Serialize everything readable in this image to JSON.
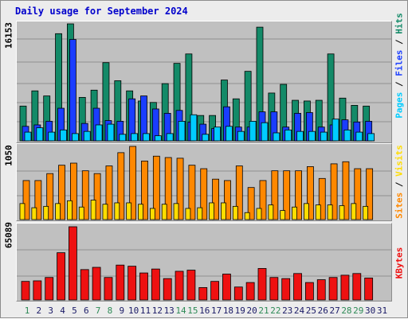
{
  "title": "Daily usage for September 2024",
  "colors": {
    "pages": "#00ccff",
    "files": "#1a3dff",
    "hits": "#138a68",
    "visits": "#ffdd00",
    "sites": "#ff8800",
    "kbytes": "#ee1111",
    "weekend_label": "#2e8b57",
    "weekday_label": "#1a1a66"
  },
  "right_labels": {
    "top": {
      "pages": "Pages",
      "sep1": " / ",
      "files": "Files",
      "sep2": " / ",
      "hits": "Hits"
    },
    "mid": {
      "sites": "Sites",
      "sep": " / ",
      "visits": "Visits"
    },
    "bot": {
      "kbytes": "KBytes"
    }
  },
  "chart_data": [
    {
      "type": "bar",
      "panel": "top",
      "y_max_label": "16153",
      "ylim": [
        0,
        16153
      ],
      "grid": true,
      "categories": [
        "1",
        "2",
        "3",
        "4",
        "5",
        "6",
        "7",
        "8",
        "9",
        "10",
        "11",
        "12",
        "13",
        "14",
        "15",
        "16",
        "17",
        "18",
        "19",
        "20",
        "21",
        "22",
        "23",
        "24",
        "25",
        "26",
        "27",
        "28",
        "29",
        "30"
      ],
      "series": [
        {
          "name": "Hits",
          "values": [
            4800,
            6900,
            6200,
            14800,
            16153,
            6000,
            7000,
            10800,
            8300,
            6900,
            5500,
            5300,
            7900,
            10700,
            12000,
            3500,
            3500,
            8400,
            5800,
            9600,
            15700,
            6600,
            7800,
            5600,
            5500,
            5600,
            12000,
            5900,
            4900,
            4800
          ]
        },
        {
          "name": "Files",
          "values": [
            2000,
            2200,
            2700,
            4500,
            14000,
            2400,
            4500,
            2800,
            2700,
            5800,
            6200,
            4400,
            3800,
            4200,
            2600,
            2300,
            1700,
            4700,
            1900,
            1900,
            4000,
            4000,
            1900,
            3800,
            3900,
            1900,
            2200,
            2900,
            2600,
            2700
          ]
        },
        {
          "name": "Pages",
          "values": [
            1200,
            1800,
            1200,
            1500,
            1000,
            1300,
            2200,
            2300,
            900,
            1000,
            1000,
            700,
            1000,
            2700,
            3600,
            900,
            1900,
            2000,
            1300,
            2700,
            2500,
            1100,
            1500,
            1300,
            1300,
            1200,
            3000,
            1500,
            1200,
            1000
          ]
        }
      ]
    },
    {
      "type": "bar",
      "panel": "mid",
      "y_max_label": "1050",
      "ylim": [
        0,
        1050
      ],
      "grid": true,
      "categories": [
        "1",
        "2",
        "3",
        "4",
        "5",
        "6",
        "7",
        "8",
        "9",
        "10",
        "11",
        "12",
        "13",
        "14",
        "15",
        "16",
        "17",
        "18",
        "19",
        "20",
        "21",
        "22",
        "23",
        "24",
        "25",
        "26",
        "27",
        "28",
        "29",
        "30"
      ],
      "series": [
        {
          "name": "Sites",
          "values": [
            560,
            560,
            660,
            780,
            810,
            700,
            660,
            770,
            960,
            1050,
            840,
            910,
            890,
            880,
            780,
            730,
            580,
            560,
            770,
            460,
            560,
            700,
            700,
            700,
            760,
            590,
            800,
            830,
            730,
            730
          ]
        },
        {
          "name": "Visits",
          "values": [
            230,
            170,
            190,
            230,
            270,
            180,
            280,
            220,
            240,
            240,
            220,
            160,
            220,
            230,
            160,
            170,
            240,
            240,
            190,
            100,
            160,
            210,
            130,
            180,
            230,
            210,
            210,
            200,
            230,
            190
          ]
        }
      ]
    },
    {
      "type": "bar",
      "panel": "bot",
      "y_max_label": "65089",
      "ylim": [
        0,
        65089
      ],
      "grid": true,
      "categories": [
        "1",
        "2",
        "3",
        "4",
        "5",
        "6",
        "7",
        "8",
        "9",
        "10",
        "11",
        "12",
        "13",
        "14",
        "15",
        "16",
        "17",
        "18",
        "19",
        "20",
        "21",
        "22",
        "23",
        "24",
        "25",
        "26",
        "27",
        "28",
        "29",
        "30"
      ],
      "series": [
        {
          "name": "KBytes",
          "values": [
            16500,
            17000,
            20000,
            42000,
            65089,
            27000,
            29000,
            20000,
            31000,
            30000,
            24000,
            27500,
            19000,
            25500,
            26500,
            11000,
            16500,
            23000,
            11500,
            15500,
            28000,
            20000,
            19000,
            23500,
            15500,
            18000,
            20000,
            22000,
            23500,
            19500
          ]
        }
      ]
    }
  ],
  "x_axis": {
    "labels": [
      "1",
      "2",
      "3",
      "4",
      "5",
      "6",
      "7",
      "8",
      "9",
      "10",
      "11",
      "12",
      "13",
      "14",
      "15",
      "16",
      "17",
      "18",
      "19",
      "20",
      "21",
      "22",
      "23",
      "24",
      "25",
      "26",
      "27",
      "28",
      "29",
      "30",
      "31"
    ],
    "weekend_days": [
      "1",
      "7",
      "8",
      "14",
      "15",
      "21",
      "22",
      "28",
      "29"
    ]
  }
}
